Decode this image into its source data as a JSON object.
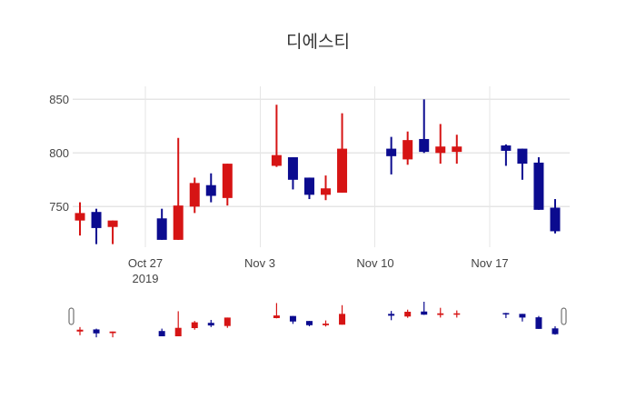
{
  "title": "디에스티",
  "colors": {
    "up": "#d61414",
    "down": "#0b0b8f",
    "grid": "#e6e6e6",
    "text": "#444444",
    "handle_fill": "#ffffff",
    "handle_border": "#555555",
    "background": "#ffffff"
  },
  "y_axis": {
    "ticks": [
      850,
      800,
      750
    ]
  },
  "x_axis": {
    "ticks": [
      {
        "label": "Oct 27",
        "sublabel": "2019",
        "date": "2019-10-27"
      },
      {
        "label": "Nov 3",
        "sublabel": "",
        "date": "2019-11-03"
      },
      {
        "label": "Nov 10",
        "sublabel": "",
        "date": "2019-11-10"
      },
      {
        "label": "Nov 17",
        "sublabel": "",
        "date": "2019-11-17"
      }
    ]
  },
  "chart_data": {
    "type": "candlestick",
    "title": "디에스티",
    "xlabel": "",
    "ylabel": "",
    "grid": true,
    "legend": false,
    "rangeslider": true,
    "x_start": "2019-10-23",
    "ylim": [
      712,
      862
    ],
    "up_color": "#d61414",
    "down_color": "#0b0b8f",
    "points": [
      {
        "date": "2019-10-23",
        "open": 737,
        "high": 754,
        "low": 723,
        "close": 744
      },
      {
        "date": "2019-10-24",
        "open": 745,
        "high": 748,
        "low": 715,
        "close": 730
      },
      {
        "date": "2019-10-25",
        "open": 731,
        "high": 737,
        "low": 715,
        "close": 737
      },
      {
        "date": "2019-10-28",
        "open": 739,
        "high": 748,
        "low": 719,
        "close": 719
      },
      {
        "date": "2019-10-29",
        "open": 719,
        "high": 814,
        "low": 719,
        "close": 751
      },
      {
        "date": "2019-10-30",
        "open": 750,
        "high": 777,
        "low": 744,
        "close": 772
      },
      {
        "date": "2019-10-31",
        "open": 770,
        "high": 781,
        "low": 754,
        "close": 760
      },
      {
        "date": "2019-11-01",
        "open": 758,
        "high": 790,
        "low": 751,
        "close": 790
      },
      {
        "date": "2019-11-04",
        "open": 788,
        "high": 845,
        "low": 787,
        "close": 798
      },
      {
        "date": "2019-11-05",
        "open": 796,
        "high": 796,
        "low": 766,
        "close": 775
      },
      {
        "date": "2019-11-06",
        "open": 777,
        "high": 777,
        "low": 757,
        "close": 761
      },
      {
        "date": "2019-11-07",
        "open": 761,
        "high": 779,
        "low": 756,
        "close": 767
      },
      {
        "date": "2019-11-08",
        "open": 763,
        "high": 837,
        "low": 763,
        "close": 804
      },
      {
        "date": "2019-11-11",
        "open": 804,
        "high": 815,
        "low": 780,
        "close": 797
      },
      {
        "date": "2019-11-12",
        "open": 794,
        "high": 820,
        "low": 789,
        "close": 812
      },
      {
        "date": "2019-11-13",
        "open": 813,
        "high": 850,
        "low": 800,
        "close": 801
      },
      {
        "date": "2019-11-14",
        "open": 800,
        "high": 827,
        "low": 790,
        "close": 806
      },
      {
        "date": "2019-11-15",
        "open": 801,
        "high": 817,
        "low": 790,
        "close": 806
      },
      {
        "date": "2019-11-18",
        "open": 807,
        "high": 808,
        "low": 788,
        "close": 802
      },
      {
        "date": "2019-11-19",
        "open": 804,
        "high": 804,
        "low": 775,
        "close": 790
      },
      {
        "date": "2019-11-20",
        "open": 791,
        "high": 796,
        "low": 747,
        "close": 747
      },
      {
        "date": "2019-11-21",
        "open": 749,
        "high": 757,
        "low": 725,
        "close": 727
      }
    ]
  }
}
